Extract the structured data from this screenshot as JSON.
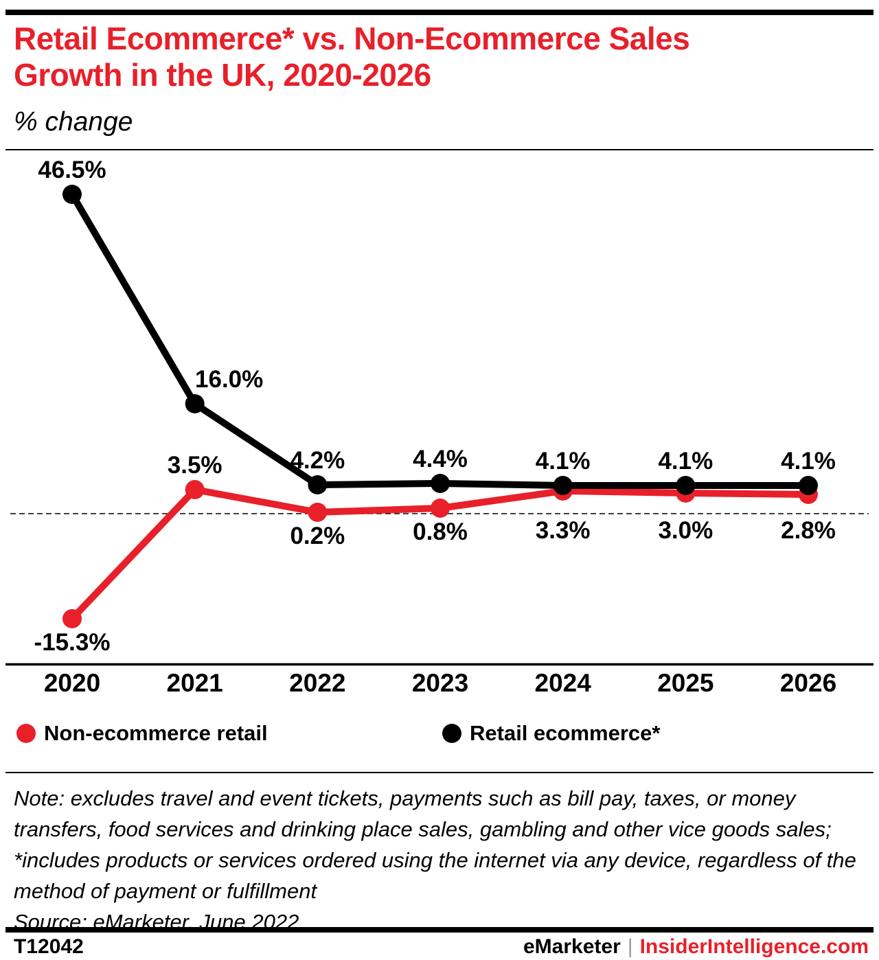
{
  "header": {
    "title_line1": "Retail Ecommerce* vs. Non-Ecommerce Sales",
    "title_line2": "Growth in the UK, 2020-2026",
    "subtitle": "% change"
  },
  "chart_data": {
    "type": "line",
    "categories": [
      "2020",
      "2021",
      "2022",
      "2023",
      "2024",
      "2025",
      "2026"
    ],
    "series": [
      {
        "name": "Retail ecommerce*",
        "color": "#000000",
        "values": [
          46.5,
          16.0,
          4.2,
          4.4,
          4.1,
          4.1,
          4.1
        ],
        "labels": [
          "46.5%",
          "16.0%",
          "4.2%",
          "4.4%",
          "4.1%",
          "4.1%",
          "4.1%"
        ],
        "label_side": [
          "above",
          "above",
          "above",
          "above",
          "above",
          "above",
          "above"
        ],
        "label_dx": [
          0,
          50,
          0,
          0,
          0,
          0,
          0
        ]
      },
      {
        "name": "Non-ecommerce retail",
        "color": "#e8202a",
        "values": [
          -15.3,
          3.5,
          0.2,
          0.8,
          3.3,
          3.0,
          2.8
        ],
        "labels": [
          "-15.3%",
          "3.5%",
          "0.2%",
          "0.8%",
          "3.3%",
          "3.0%",
          "2.8%"
        ],
        "label_side": [
          "below",
          "above",
          "below",
          "below",
          "below",
          "below",
          "below"
        ],
        "label_dx": [
          0,
          0,
          0,
          0,
          0,
          0,
          0
        ]
      }
    ],
    "title": "Retail Ecommerce* vs. Non-Ecommerce Sales Growth in the UK, 2020-2026",
    "ylabel": "% change",
    "xlabel": "",
    "ylim": [
      -20,
      50
    ],
    "zero_line": true,
    "grid": false,
    "legend_position": "bottom"
  },
  "legend": {
    "items": [
      {
        "label": "Non-ecommerce retail",
        "color": "#e8202a"
      },
      {
        "label": "Retail ecommerce*",
        "color": "#000000"
      }
    ]
  },
  "note": {
    "text": "Note: excludes travel and event tickets, payments such as bill pay, taxes, or money transfers, food services and drinking place sales, gambling and other vice goods sales; *includes products or services ordered using the internet via any device, regardless of the method of payment or fulfillment",
    "source": "Source: eMarketer, June 2022"
  },
  "footer": {
    "chart_id": "T12042",
    "brand": "eMarketer",
    "separator": "|",
    "site": "InsiderIntelligence.com"
  },
  "colors": {
    "accent_red": "#e8202a",
    "black": "#000000"
  }
}
